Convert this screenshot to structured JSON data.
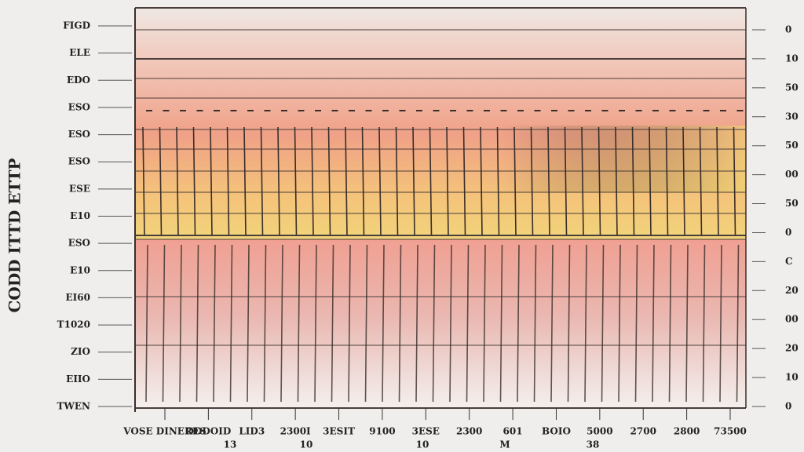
{
  "title": "CODD ITTD ETTP",
  "left_labels": [
    "FIGD",
    "ELE",
    "EDO",
    "ESO",
    "ESO",
    "ESO",
    "ESE",
    "E10",
    "ESO",
    "E10",
    "EI60",
    "T1020",
    "ZIO",
    "EIIO",
    "TWEN"
  ],
  "bottom_labels": [
    "VOSE DINERES",
    "ODDOID",
    "LID3",
    "2300I",
    "3ESIT",
    "9100",
    "3ESE",
    "2300",
    "601",
    "BOIO",
    "5000",
    "2700",
    "2800",
    "73500"
  ],
  "bottom_sub_labels": [
    "13",
    "10",
    "10",
    "M",
    "38"
  ],
  "right_labels": [
    "0",
    "10",
    "50",
    "30",
    "50",
    "00",
    "50",
    "0",
    "C",
    "20",
    "00",
    "20",
    "10",
    "0"
  ]
}
